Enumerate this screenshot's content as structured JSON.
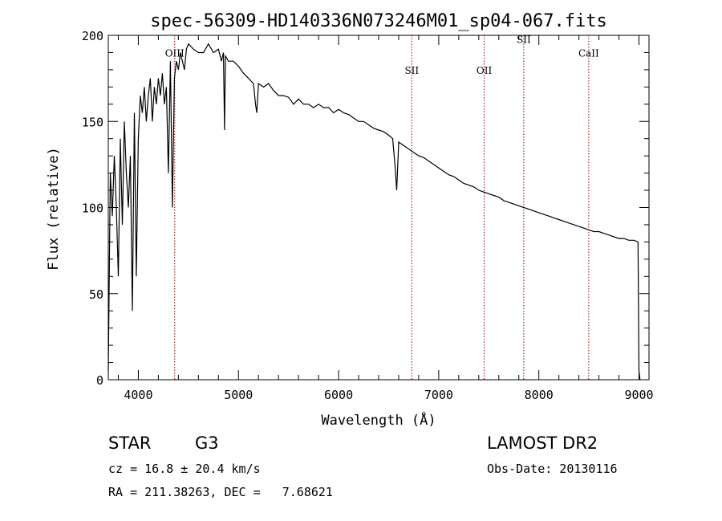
{
  "chart_data": {
    "type": "line",
    "title": "spec-56309-HD140336N073246M01_sp04-067.fits",
    "xlabel": "Wavelength (Å)",
    "ylabel": "Flux (relative)",
    "xlim": [
      3700,
      9100
    ],
    "ylim": [
      0,
      200
    ],
    "xticks": [
      4000,
      5000,
      6000,
      7000,
      8000,
      9000
    ],
    "xtick_labels": [
      "4000",
      "5000",
      "6000",
      "7000",
      "8000",
      "9000"
    ],
    "yticks": [
      0,
      50,
      100,
      150,
      200
    ],
    "ytick_labels": [
      "0",
      "50",
      "100",
      "150",
      "200"
    ],
    "series": [
      {
        "name": "spectrum",
        "x": [
          3700,
          3720,
          3740,
          3760,
          3780,
          3800,
          3820,
          3840,
          3860,
          3880,
          3900,
          3920,
          3940,
          3960,
          3980,
          4000,
          4020,
          4040,
          4060,
          4080,
          4100,
          4120,
          4140,
          4160,
          4180,
          4200,
          4220,
          4240,
          4260,
          4280,
          4300,
          4320,
          4340,
          4360,
          4380,
          4400,
          4420,
          4440,
          4460,
          4480,
          4500,
          4550,
          4600,
          4650,
          4700,
          4750,
          4800,
          4830,
          4850,
          4861,
          4870,
          4900,
          4950,
          5000,
          5050,
          5100,
          5150,
          5170,
          5183,
          5200,
          5250,
          5300,
          5350,
          5400,
          5450,
          5500,
          5550,
          5600,
          5650,
          5700,
          5750,
          5800,
          5850,
          5900,
          5950,
          6000,
          6050,
          6100,
          6150,
          6200,
          6250,
          6300,
          6350,
          6400,
          6450,
          6500,
          6540,
          6563,
          6580,
          6600,
          6650,
          6700,
          6750,
          6800,
          6850,
          6900,
          6950,
          7000,
          7050,
          7100,
          7150,
          7200,
          7250,
          7300,
          7350,
          7400,
          7450,
          7500,
          7550,
          7600,
          7650,
          7700,
          7750,
          7800,
          7850,
          7900,
          7950,
          8000,
          8050,
          8100,
          8150,
          8200,
          8250,
          8300,
          8350,
          8400,
          8450,
          8500,
          8550,
          8600,
          8650,
          8700,
          8750,
          8800,
          8850,
          8900,
          8950,
          8990,
          9000,
          9010
        ],
        "y": [
          5,
          120,
          95,
          130,
          100,
          60,
          140,
          90,
          150,
          120,
          100,
          130,
          40,
          155,
          60,
          140,
          165,
          155,
          170,
          150,
          165,
          175,
          150,
          170,
          160,
          175,
          165,
          178,
          160,
          170,
          120,
          185,
          100,
          175,
          185,
          180,
          190,
          185,
          180,
          192,
          195,
          192,
          190,
          190,
          195,
          190,
          192,
          185,
          190,
          145,
          188,
          185,
          185,
          182,
          178,
          175,
          172,
          160,
          155,
          172,
          170,
          172,
          168,
          165,
          165,
          164,
          160,
          163,
          160,
          160,
          158,
          160,
          158,
          158,
          155,
          157,
          155,
          154,
          152,
          150,
          150,
          148,
          146,
          145,
          144,
          142,
          140,
          125,
          110,
          138,
          136,
          134,
          132,
          130,
          129,
          127,
          125,
          123,
          121,
          119,
          118,
          116,
          114,
          113,
          112,
          110,
          109,
          108,
          107,
          106,
          104,
          103,
          102,
          101,
          100,
          99,
          98,
          97,
          96,
          95,
          94,
          93,
          92,
          91,
          90,
          89,
          88,
          87,
          86,
          86,
          85,
          84,
          83,
          82,
          82,
          81,
          81,
          80,
          5,
          0
        ]
      }
    ],
    "lines": [
      {
        "label": "OIII",
        "x": 4363,
        "label_y": 190
      },
      {
        "label": "SII",
        "x": 6731,
        "label_y": 180
      },
      {
        "label": "OII",
        "x": 7454,
        "label_y": 180
      },
      {
        "label": "SII",
        "x": 7849,
        "label_y": 198
      },
      {
        "label": "CaII",
        "x": 8498,
        "label_y": 190
      }
    ]
  },
  "info": {
    "object_class": "STAR",
    "subclass": "G3",
    "survey": "LAMOST DR2",
    "cz": "cz = 16.8 ± 20.4 km/s",
    "obs_date": "Obs-Date: 20130116",
    "coords": "RA = 211.38263, DEC =   7.68621"
  },
  "colors": {
    "spectrum": "#000000",
    "marker_line": "#8b0000",
    "axes": "#000000"
  }
}
